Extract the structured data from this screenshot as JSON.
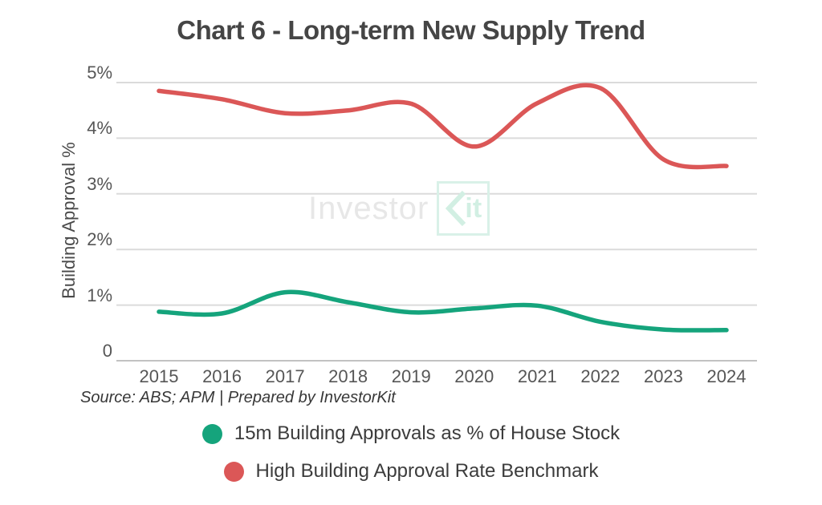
{
  "source_note": "Source: ABS; APM | Prepared by InvestorKit",
  "watermark": {
    "text_gray": "Investor",
    "kit_k_icon": "chevron-k",
    "kit_it": "it",
    "gray_color": "#e7e7e7",
    "teal_color": "#d2efe3"
  },
  "colors": {
    "green_series": "#15a47c",
    "red_series": "#db5757",
    "gridline": "#dbdbdb",
    "zero_line": "#c2c2c2",
    "title_text": "#454545",
    "axis_text": "#565656"
  },
  "chart_data": {
    "type": "line",
    "title": "Chart 6 - Long-term New Supply Trend",
    "ylabel": "Building Approval %",
    "xlabel": "",
    "ylim": [
      0,
      5
    ],
    "grid": true,
    "legend_position": "bottom",
    "x": [
      "2015",
      "2016",
      "2017",
      "2018",
      "2019",
      "2020",
      "2021",
      "2022",
      "2023",
      "2024"
    ],
    "yticks": [
      {
        "value": 5,
        "label": "5%"
      },
      {
        "value": 4,
        "label": "4%"
      },
      {
        "value": 3,
        "label": "3%"
      },
      {
        "value": 2,
        "label": "2%"
      },
      {
        "value": 1,
        "label": "1%"
      },
      {
        "value": 0,
        "label": "0"
      }
    ],
    "series": [
      {
        "name": "15m Building Approvals as % of House Stock",
        "color": "#15a47c",
        "values": [
          0.88,
          0.85,
          1.23,
          1.05,
          0.87,
          0.94,
          0.99,
          0.7,
          0.56,
          0.55
        ]
      },
      {
        "name": "High Building Approval Rate Benchmark",
        "color": "#db5757",
        "values": [
          4.85,
          4.7,
          4.45,
          4.5,
          4.62,
          3.85,
          4.63,
          4.9,
          3.62,
          3.5
        ]
      }
    ]
  }
}
